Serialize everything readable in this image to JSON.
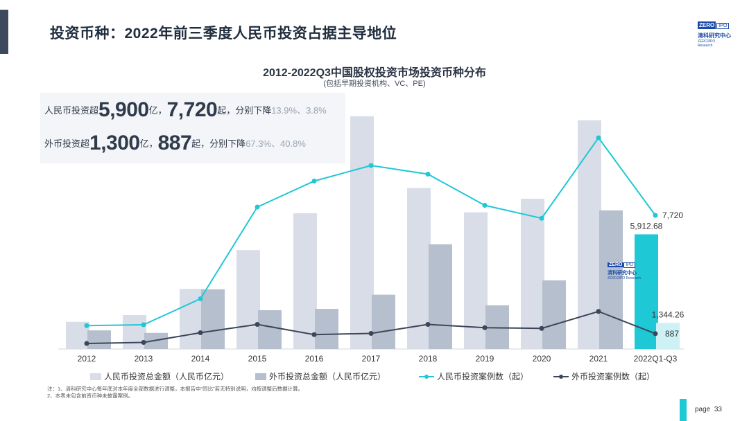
{
  "slide": {
    "title": "投资币种：2022年前三季度人民币投资占据主导地位",
    "page_label": "page",
    "page_number": "33"
  },
  "logo": {
    "top": {
      "zero": "ZERO",
      "ipo": "IPO",
      "cn": "清科研究中心",
      "en": "ZERO2IPO Research"
    },
    "watermark": {
      "zero": "ZERO",
      "ipo": "IPO",
      "cn": "清科研究中心",
      "en": "ZERO2IPO Research"
    }
  },
  "summary": {
    "rmb": {
      "prefix": "人民币投资超",
      "amount": "5,900",
      "unit1": "亿，",
      "count": "7,720",
      "unit2": "起，分别下降",
      "change": "13.9%、3.8%"
    },
    "fx": {
      "prefix": "外币投资超",
      "amount": "1,300",
      "unit1": "亿，",
      "count": "887",
      "unit2": "起，分别下降",
      "change": "67.3%、40.8%"
    }
  },
  "notes": [
    "注：1、清科研究中心每年底对本年度全部数据进行调整，本报告中“同比”若无特别说明，均按调整后数据计算。",
    "      2、本表未包含前资币种未披露案例。"
  ],
  "colors": {
    "rmb_bar": "#d8dde7",
    "fx_bar": "#b5bfcd",
    "rmb_bar_highlight": "#1ec8d4",
    "fx_bar_highlight": "#cdf1f4",
    "rmb_line": "#1ec8d4",
    "fx_line": "#3c4658"
  },
  "chart_data": {
    "type": "bar",
    "title": "2012-2022Q3中国股权投资市场投资币种分布",
    "subtitle": "(包括早期投资机构、VC、PE)",
    "categories": [
      "2012",
      "2013",
      "2014",
      "2015",
      "2016",
      "2017",
      "2018",
      "2019",
      "2020",
      "2021",
      "2022Q1-Q3"
    ],
    "series": [
      {
        "name": "人民币投资总金额（人民币亿元）",
        "kind": "bar",
        "axis": "left",
        "values": [
          1400,
          1750,
          3100,
          5100,
          7000,
          12000,
          8300,
          7050,
          7750,
          11800,
          5912.68
        ]
      },
      {
        "name": "外币投资总金额（人民币亿元）",
        "kind": "bar",
        "axis": "left",
        "values": [
          960,
          830,
          3080,
          2000,
          2070,
          2800,
          5400,
          2250,
          3540,
          7150,
          1344.26
        ]
      },
      {
        "name": "人民币投资案例数（起）",
        "kind": "line",
        "axis": "right",
        "values": [
          1350,
          1400,
          2900,
          8200,
          9700,
          10600,
          10100,
          8300,
          7550,
          12200,
          7720
        ]
      },
      {
        "name": "外币投资案例数（起）",
        "kind": "line",
        "axis": "right",
        "values": [
          320,
          380,
          940,
          1420,
          830,
          900,
          1420,
          1230,
          1190,
          2170,
          887
        ]
      }
    ],
    "data_labels": [
      {
        "category": "2022Q1-Q3",
        "series": 0,
        "text": "5,912.68"
      },
      {
        "category": "2022Q1-Q3",
        "series": 1,
        "text": "1,344.26"
      },
      {
        "category": "2022Q1-Q3",
        "series": 2,
        "text": "7,720"
      },
      {
        "category": "2022Q1-Q3",
        "series": 3,
        "text": "887"
      }
    ],
    "ylim_left": [
      0,
      12500
    ],
    "ylim_right": [
      0,
      14000
    ],
    "grid": false,
    "legend": "bottom"
  }
}
